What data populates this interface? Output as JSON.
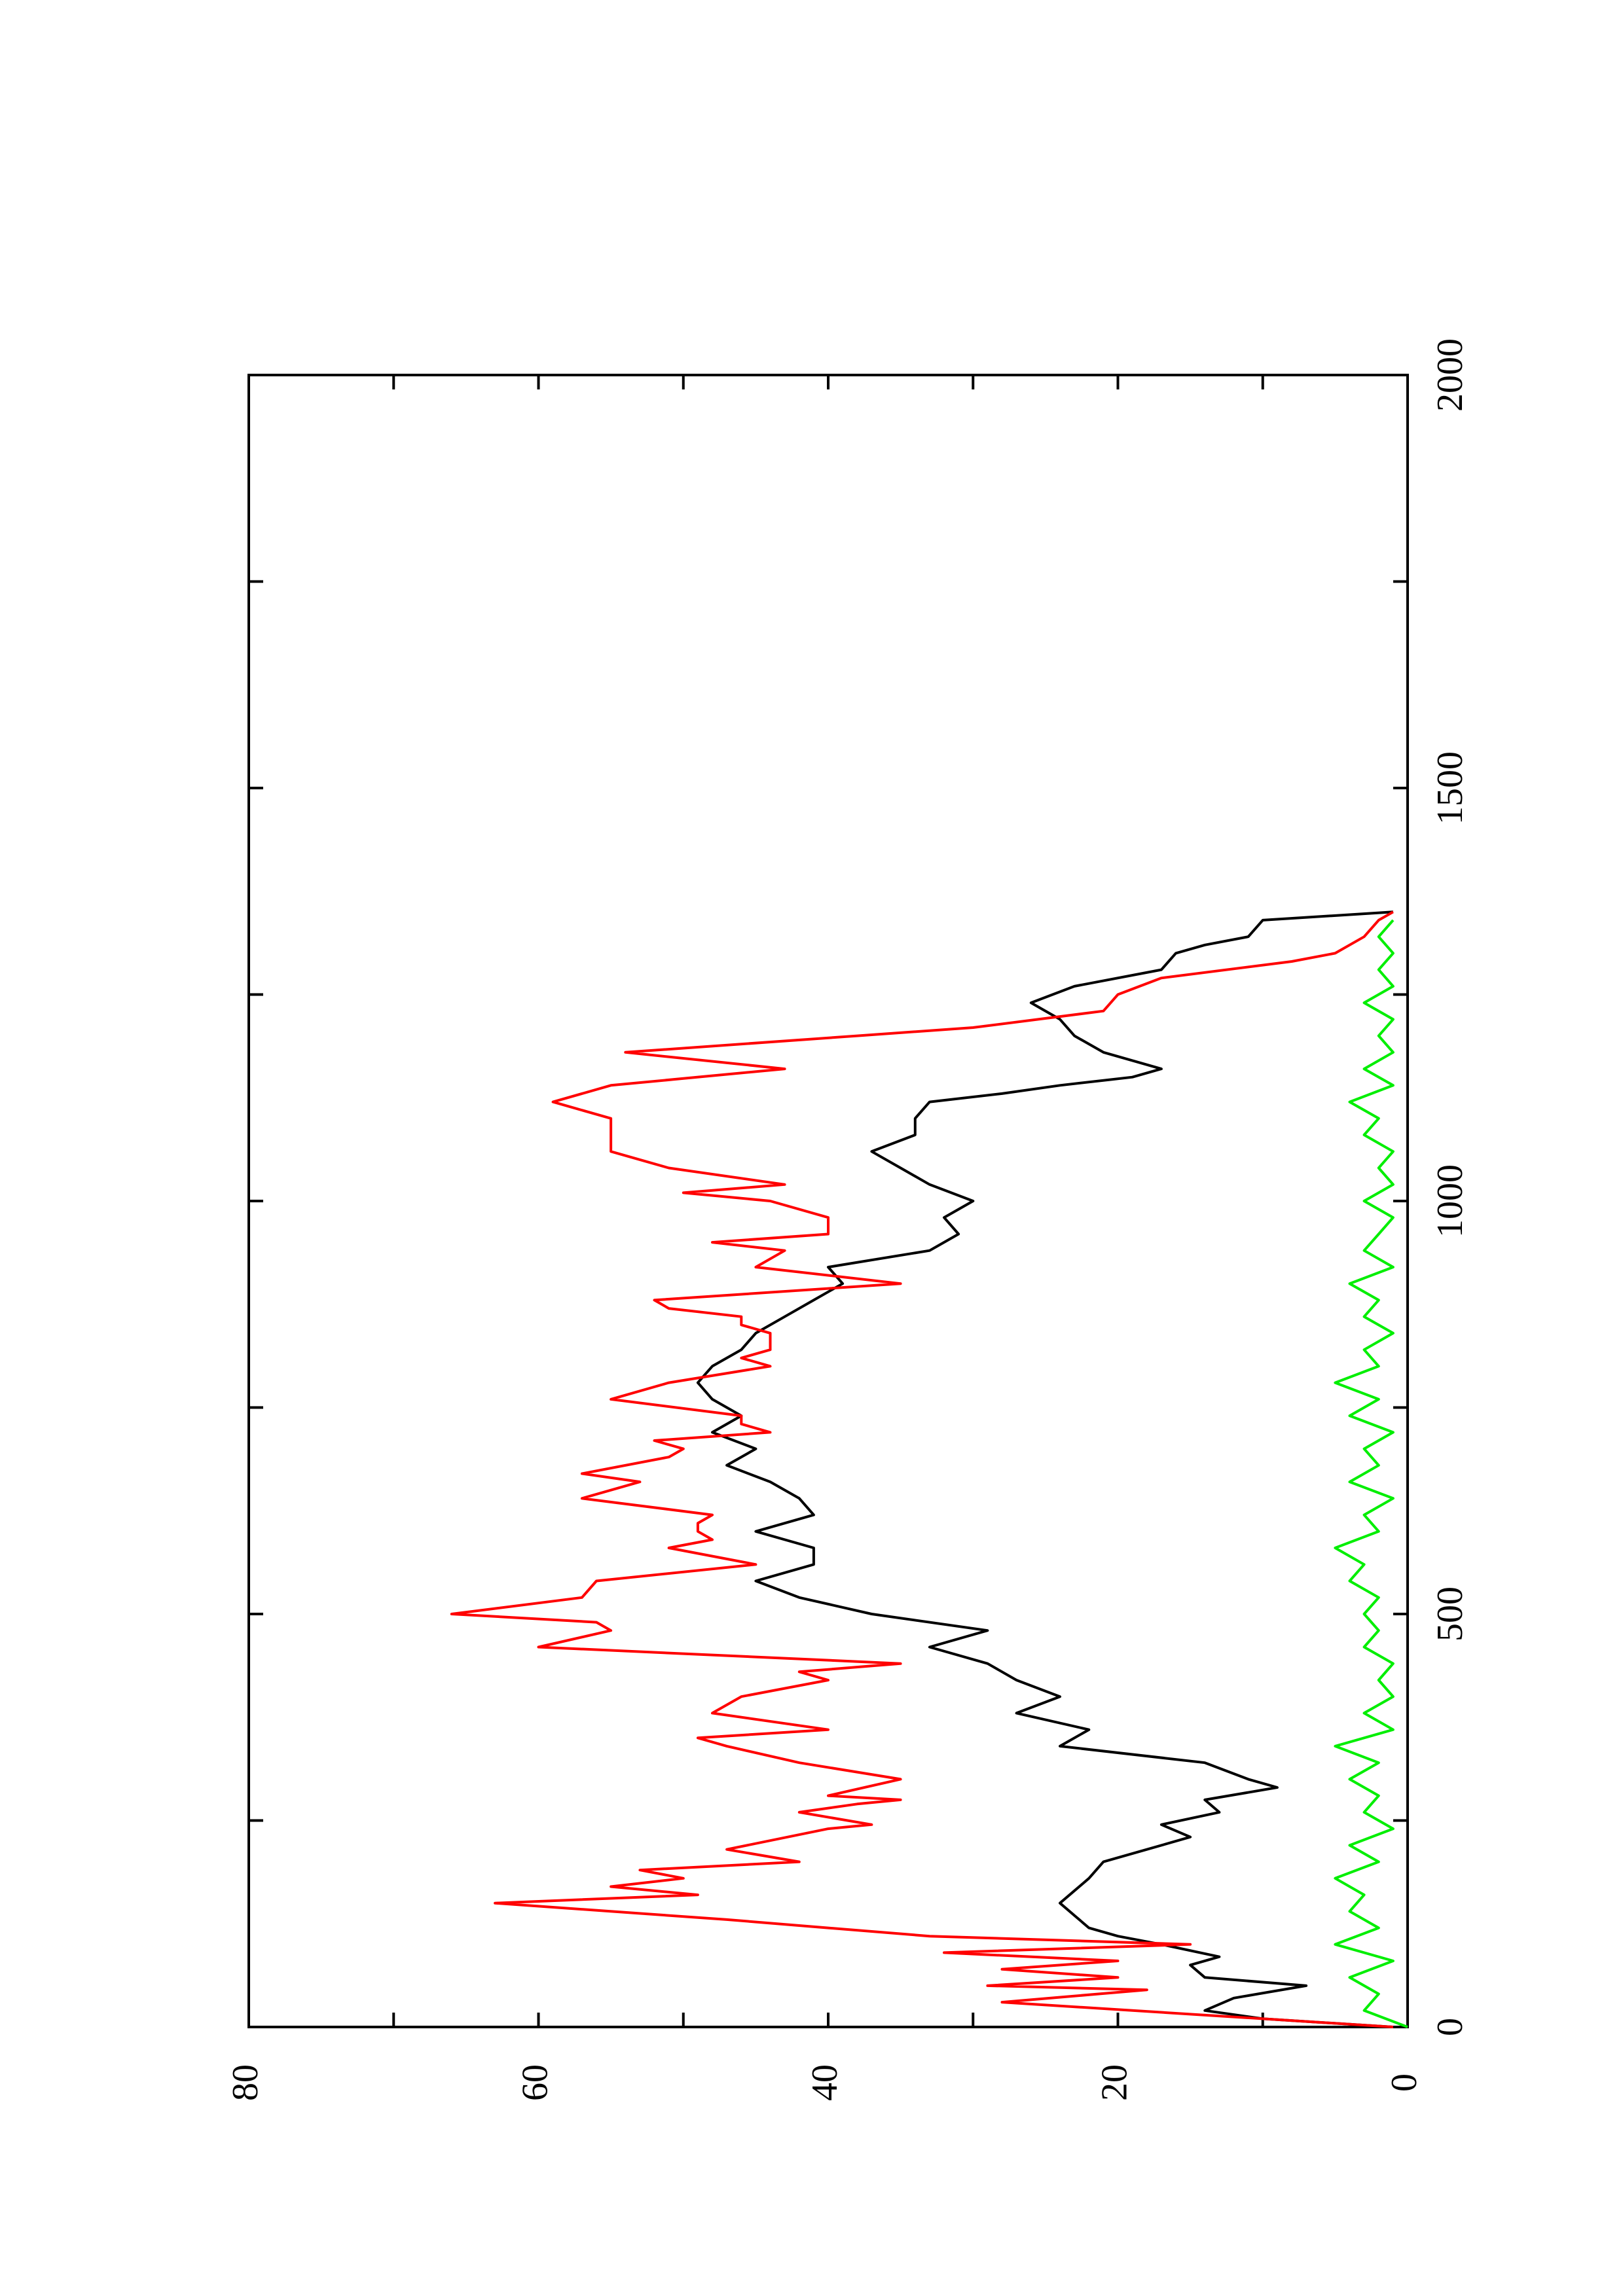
{
  "chart_data": {
    "type": "line",
    "title": "",
    "xlabel": "",
    "ylabel": "",
    "orientation": "rotated 90 degrees counter-clockwise (x axis runs bottom-to-top on the right edge, y axis runs right-to-left along the bottom)",
    "xlim": [
      0,
      2000
    ],
    "ylim": [
      0,
      80
    ],
    "x_ticks": [
      0,
      500,
      1000,
      1500,
      2000
    ],
    "y_ticks": [
      0,
      20,
      40,
      60,
      80
    ],
    "grid": false,
    "series": [
      {
        "color": "#000000",
        "x": [
          0,
          10,
          20,
          35,
          50,
          60,
          75,
          85,
          100,
          110,
          120,
          135,
          150,
          165,
          180,
          200,
          215,
          230,
          245,
          260,
          275,
          290,
          300,
          320,
          340,
          360,
          380,
          400,
          420,
          440,
          460,
          480,
          500,
          520,
          540,
          560,
          580,
          600,
          620,
          640,
          660,
          680,
          700,
          720,
          740,
          760,
          780,
          800,
          820,
          840,
          860,
          880,
          900,
          920,
          940,
          960,
          980,
          1000,
          1020,
          1040,
          1060,
          1080,
          1100,
          1120,
          1130,
          1140,
          1150,
          1160,
          1180,
          1200,
          1220,
          1240,
          1260,
          1280,
          1300,
          1310,
          1320,
          1340,
          1350
        ],
        "y": [
          1,
          10,
          14,
          12,
          7,
          14,
          15,
          13,
          17,
          20,
          22,
          23,
          24,
          23,
          22,
          21,
          18,
          15,
          17,
          13,
          14,
          9,
          11,
          14,
          24,
          22,
          27,
          24,
          27,
          29,
          33,
          29,
          37,
          42,
          45,
          41,
          41,
          45,
          41,
          42,
          44,
          47,
          45,
          48,
          46,
          48,
          49,
          48,
          46,
          45,
          43,
          41,
          39,
          40,
          33,
          31,
          32,
          30,
          33,
          35,
          37,
          34,
          34,
          33,
          28,
          24,
          19,
          17,
          21,
          23,
          24,
          26,
          23,
          17,
          16,
          14,
          11,
          10,
          1
        ]
      },
      {
        "color": "#ff0000",
        "x": [
          0,
          10,
          20,
          30,
          45,
          50,
          60,
          70,
          80,
          90,
          100,
          110,
          120,
          130,
          150,
          160,
          170,
          180,
          190,
          200,
          215,
          240,
          245,
          260,
          270,
          275,
          280,
          300,
          320,
          340,
          350,
          360,
          380,
          400,
          420,
          430,
          440,
          460,
          480,
          490,
          500,
          520,
          540,
          560,
          580,
          590,
          600,
          610,
          620,
          640,
          660,
          670,
          690,
          700,
          710,
          720,
          730,
          740,
          760,
          780,
          800,
          810,
          820,
          840,
          850,
          860,
          870,
          880,
          900,
          920,
          940,
          950,
          960,
          980,
          1000,
          1010,
          1020,
          1040,
          1060,
          1080,
          1100,
          1120,
          1140,
          1160,
          1180,
          1200,
          1210,
          1230,
          1250,
          1270,
          1290,
          1300,
          1320,
          1340,
          1350
        ],
        "y": [
          1,
          10,
          19,
          28,
          18,
          29,
          20,
          28,
          20,
          32,
          15,
          33,
          40,
          47,
          63,
          49,
          55,
          50,
          53,
          42,
          47,
          40,
          37,
          42,
          38,
          35,
          40,
          35,
          42,
          47,
          49,
          40,
          48,
          46,
          40,
          42,
          35,
          60,
          55,
          56,
          66,
          57,
          56,
          45,
          51,
          48,
          49,
          49,
          48,
          57,
          53,
          57,
          51,
          50,
          52,
          44,
          46,
          46,
          55,
          51,
          44,
          46,
          44,
          44,
          46,
          46,
          51,
          52,
          35,
          45,
          43,
          48,
          40,
          40,
          44,
          50,
          43,
          51,
          55,
          55,
          55,
          59,
          55,
          43,
          54,
          38,
          30,
          21,
          20,
          17,
          8,
          5,
          3,
          2,
          1
        ]
      },
      {
        "color": "#00ee00",
        "x": [
          0,
          20,
          40,
          60,
          80,
          100,
          120,
          140,
          160,
          180,
          200,
          220,
          240,
          260,
          280,
          300,
          320,
          340,
          360,
          380,
          400,
          420,
          440,
          460,
          480,
          500,
          520,
          540,
          560,
          580,
          600,
          620,
          640,
          660,
          680,
          700,
          720,
          740,
          760,
          780,
          800,
          820,
          840,
          860,
          880,
          900,
          920,
          940,
          960,
          980,
          1000,
          1020,
          1040,
          1060,
          1080,
          1100,
          1120,
          1140,
          1160,
          1180,
          1200,
          1220,
          1240,
          1260,
          1280,
          1300,
          1320,
          1340
        ],
        "y": [
          0,
          3,
          2,
          4,
          1,
          5,
          2,
          4,
          3,
          5,
          2,
          4,
          1,
          3,
          2,
          4,
          2,
          5,
          1,
          3,
          1,
          2,
          1,
          3,
          2,
          3,
          2,
          4,
          3,
          5,
          2,
          3,
          1,
          4,
          2,
          3,
          1,
          4,
          2,
          5,
          2,
          3,
          1,
          3,
          2,
          4,
          1,
          3,
          2,
          1,
          3,
          1,
          2,
          1,
          3,
          2,
          4,
          1,
          3,
          1,
          2,
          1,
          3,
          1,
          2,
          1,
          2,
          1
        ]
      }
    ]
  }
}
